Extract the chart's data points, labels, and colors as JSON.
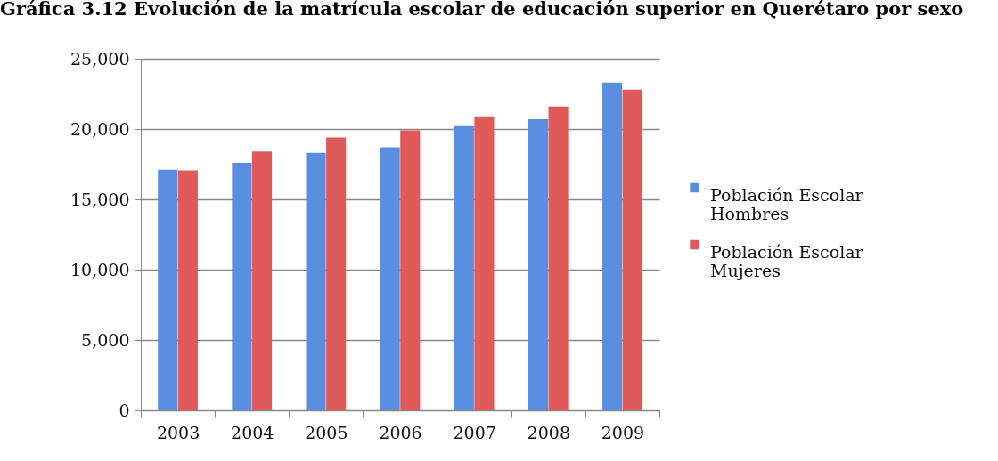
{
  "chart_data": {
    "type": "bar",
    "title": "Gráfica 3.12 Evolución de la matrícula escolar de educación superior en Querétaro por sexo",
    "categories": [
      "2003",
      "2004",
      "2005",
      "2006",
      "2007",
      "2008",
      "2009"
    ],
    "series": [
      {
        "name": "Población Escolar Hombres",
        "color": "#5a8ee0",
        "values": [
          17100,
          17600,
          18300,
          18700,
          20200,
          20700,
          23300
        ]
      },
      {
        "name": "Población Escolar Mujeres",
        "color": "#e05a5a",
        "values": [
          17050,
          18400,
          19400,
          19900,
          20900,
          21600,
          22800
        ]
      }
    ],
    "ylim": [
      0,
      25000
    ],
    "yticks": [
      0,
      {
        "value": 5000,
        "label": "5,000"
      },
      {
        "value": 10000,
        "label": "10,000"
      },
      {
        "value": 15000,
        "label": "15,000"
      },
      {
        "value": 20000,
        "label": "20,000"
      },
      {
        "value": 25000,
        "label": "25,000"
      }
    ],
    "grid": "y",
    "legend": "right"
  }
}
